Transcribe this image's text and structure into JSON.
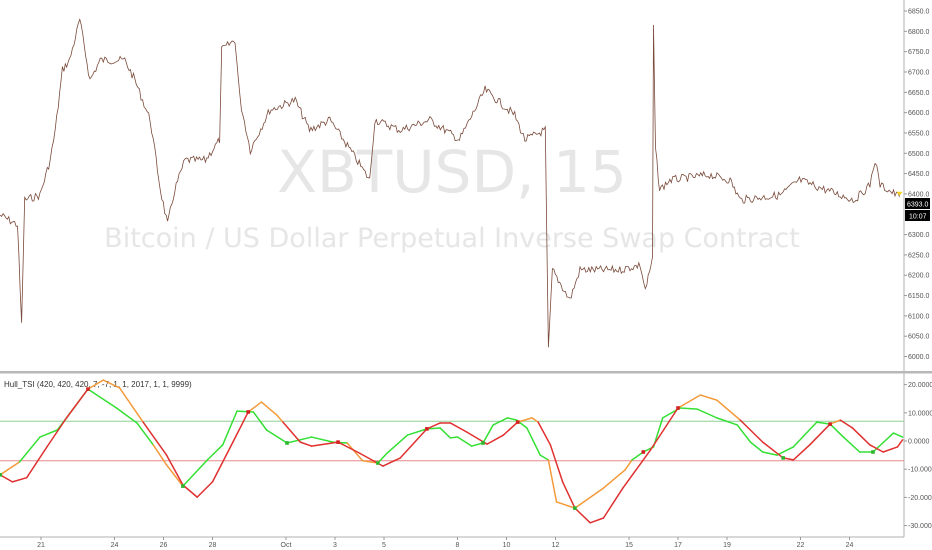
{
  "symbol": {
    "watermark_ticker": "XBTUSD, 15",
    "watermark_description": "Bitcoin / US Dollar Perpetual Inverse Swap Contract"
  },
  "price_axis": {
    "ticks": [
      "6850.0",
      "6800.0",
      "6750.0",
      "6700.0",
      "6650.0",
      "6600.0",
      "6550.0",
      "6500.0",
      "6450.0",
      "6400.0",
      "6300.0",
      "6250.0",
      "6200.0",
      "6150.0",
      "6100.0",
      "6050.0",
      "6000.0"
    ],
    "last_price": "6393.0",
    "countdown": "10:07",
    "last_price_color": "#000000"
  },
  "indicator": {
    "label": "Hull_TSI (420, 420, 420, 7, -7, 1, 1, 2017, 1, 1, 9999)",
    "ticks": [
      "20.0000",
      "10.0000",
      "0.0000",
      "-10.0000",
      "-20.0000",
      "-30.0000"
    ]
  },
  "time_axis": {
    "ticks": [
      "21",
      "24",
      "26",
      "28",
      "Oct",
      "3",
      "5",
      "8",
      "10",
      "12",
      "15",
      "17",
      "19",
      "22",
      "24"
    ]
  },
  "colors": {
    "up_line": "#33e033",
    "down_line": "#e03030",
    "alt_line": "#f39a3a",
    "upper_level": "#8fd08f",
    "lower_level": "#e88888",
    "price_line": "#7a4a3a"
  },
  "chart_data": [
    {
      "type": "line",
      "title": "",
      "ylim": [
        5975,
        6870
      ],
      "series": [
        {
          "points": [
            [
              "09-19 08:00",
              6348
            ],
            [
              "09-20 01:00",
              6324
            ],
            [
              "09-20 05:00",
              6078
            ],
            [
              "09-20 08:00",
              6385
            ],
            [
              "09-20 23:00",
              6397
            ],
            [
              "09-21 09:00",
              6483
            ],
            [
              "09-21 14:00",
              6557
            ],
            [
              "09-21 21:00",
              6705
            ],
            [
              "09-22 04:00",
              6729
            ],
            [
              "09-22 14:00",
              6828
            ],
            [
              "09-23 00:00",
              6680
            ],
            [
              "09-23 10:00",
              6729
            ],
            [
              "09-24 10:00",
              6729
            ],
            [
              "09-24 20:00",
              6680
            ],
            [
              "09-25 11:00",
              6582
            ],
            [
              "09-25 21:00",
              6410
            ],
            [
              "09-26 04:00",
              6324
            ],
            [
              "09-26 11:00",
              6410
            ],
            [
              "09-26 21:00",
              6483
            ],
            [
              "09-27 17:00",
              6483
            ],
            [
              "09-28 07:00",
              6533
            ],
            [
              "09-28 09:00",
              6754
            ],
            [
              "09-28 22:00",
              6779
            ],
            [
              "09-29 03:00",
              6631
            ],
            [
              "09-29 13:00",
              6508
            ],
            [
              "09-30 08:00",
              6606
            ],
            [
              "10-01 09:00",
              6631
            ],
            [
              "10-01 23:00",
              6557
            ],
            [
              "10-02 19:00",
              6582
            ],
            [
              "10-03 15:00",
              6508
            ],
            [
              "10-04 10:00",
              6434
            ],
            [
              "10-04 15:00",
              6582
            ],
            [
              "10-05 16:00",
              6557
            ],
            [
              "10-06 21:00",
              6582
            ],
            [
              "10-08 02:00",
              6533
            ],
            [
              "10-09 03:00",
              6656
            ],
            [
              "10-10 08:00",
              6594
            ],
            [
              "10-10 18:00",
              6533
            ],
            [
              "10-11 14:00",
              6557
            ],
            [
              "10-11 17:00",
              6016
            ],
            [
              "10-11 21:00",
              6213
            ],
            [
              "10-12 14:00",
              6139
            ],
            [
              "10-13 00:00",
              6213
            ],
            [
              "10-14 15:00",
              6213
            ],
            [
              "10-15 11:00",
              6225
            ],
            [
              "10-15 16:00",
              6164
            ],
            [
              "10-15 23:00",
              6237
            ],
            [
              "10-16 00:00",
              6816
            ],
            [
              "10-16 02:00",
              6508
            ],
            [
              "10-16 06:00",
              6410
            ],
            [
              "10-16 16:00",
              6434
            ],
            [
              "10-18 07:00",
              6447
            ],
            [
              "10-19 03:00",
              6434
            ],
            [
              "10-19 13:00",
              6385
            ],
            [
              "10-21 04:00",
              6397
            ],
            [
              "10-21 23:00",
              6434
            ],
            [
              "10-23 15:00",
              6397
            ],
            [
              "10-24 05:00",
              6385
            ],
            [
              "10-24 20:00",
              6422
            ],
            [
              "10-25 01:00",
              6483
            ],
            [
              "10-25 06:00",
              6422
            ],
            [
              "10-26 01:00",
              6393
            ]
          ]
        }
      ]
    },
    {
      "type": "line",
      "title": "Hull_TSI (420, 420, 420, 7, -7, 1, 1, 2017, 1, 1, 9999)",
      "ylim": [
        -33,
        24
      ],
      "levels": [
        7,
        -7
      ],
      "series": [
        {
          "points": [
            [
              "09-19 08:00",
              -12,
              "g"
            ],
            [
              "09-20 03:00",
              -7.4,
              "o"
            ],
            [
              "09-20 23:00",
              1.4,
              "g"
            ],
            [
              "09-21 16:00",
              3.9,
              "g"
            ],
            [
              "09-22 01:00",
              8.2,
              "g"
            ],
            [
              "09-22 22:00",
              18.4,
              "g"
            ],
            [
              "09-24 02:00",
              11.7,
              "g"
            ],
            [
              "09-24 22:00",
              6.4,
              "g"
            ],
            [
              "09-25 14:00",
              -1.4,
              "g"
            ],
            [
              "09-26 03:00",
              -8.5,
              "o"
            ],
            [
              "09-26 19:00",
              -16,
              "o"
            ],
            [
              "09-27 19:00",
              -6.7,
              "g"
            ],
            [
              "09-28 10:00",
              -1.4,
              "g"
            ],
            [
              "09-29 00:00",
              10.6,
              "g"
            ],
            [
              "09-29 16:00",
              10.3,
              "g"
            ],
            [
              "09-30 05:00",
              3.9,
              "g"
            ],
            [
              "10-01 01:00",
              -0.7,
              "g"
            ],
            [
              "10-02 01:00",
              1.4,
              "g"
            ],
            [
              "10-02 22:00",
              -0.4,
              "g"
            ],
            [
              "10-03 12:00",
              -0.7,
              "g"
            ],
            [
              "10-04 03:00",
              -7,
              "o"
            ],
            [
              "10-04 18:00",
              -7.8,
              "o"
            ],
            [
              "10-05 03:00",
              -4.3,
              "g"
            ],
            [
              "10-05 23:00",
              2.1,
              "g"
            ],
            [
              "10-06 18:00",
              4.3,
              "g"
            ],
            [
              "10-07 07:00",
              4.6,
              "g"
            ],
            [
              "10-07 17:00",
              1.1,
              "g"
            ],
            [
              "10-08 00:00",
              1.4,
              "g"
            ],
            [
              "10-08 14:00",
              -1.8,
              "g"
            ],
            [
              "10-09 01:00",
              -0.7,
              "g"
            ],
            [
              "10-09 11:00",
              5.7,
              "g"
            ],
            [
              "10-10 01:00",
              8.2,
              "g"
            ],
            [
              "10-10 10:00",
              7.4,
              "g"
            ],
            [
              "10-10 20:00",
              4.6,
              "g"
            ],
            [
              "10-11 09:00",
              -5,
              "g"
            ],
            [
              "10-11 17:00",
              -6.7,
              "g"
            ],
            [
              "10-12 01:00",
              -21.6,
              "o"
            ],
            [
              "10-12 19:00",
              -23.8,
              "o"
            ],
            [
              "10-13 23:00",
              -16.7,
              "o"
            ],
            [
              "10-14 20:00",
              -10.3,
              "o"
            ],
            [
              "10-15 03:00",
              -6.7,
              "o"
            ],
            [
              "10-15 14:00",
              -3.9,
              "g"
            ],
            [
              "10-16 00:00",
              -2.1,
              "g"
            ],
            [
              "10-16 09:00",
              8.2,
              "g"
            ],
            [
              "10-17 02:00",
              11.7,
              "g"
            ],
            [
              "10-17 19:00",
              11.3,
              "g"
            ],
            [
              "10-18 14:00",
              8.2,
              "g"
            ],
            [
              "10-19 10:00",
              5.7,
              "g"
            ],
            [
              "10-19 23:00",
              -0.4,
              "g"
            ],
            [
              "10-20 11:00",
              -3.9,
              "g"
            ],
            [
              "10-21 01:00",
              -5,
              "g"
            ],
            [
              "10-21 17:00",
              -2.1,
              "g"
            ],
            [
              "10-22 16:00",
              6.7,
              "g"
            ],
            [
              "10-23 05:00",
              6,
              "g"
            ],
            [
              "10-23 18:00",
              1.4,
              "g"
            ],
            [
              "10-24 10:00",
              -3.9,
              "g"
            ],
            [
              "10-24 23:00",
              -3.9,
              "g"
            ],
            [
              "10-25 19:00",
              2.8,
              "g"
            ],
            [
              "10-26 04:00",
              1.4,
              "g"
            ]
          ]
        },
        {
          "points": [
            [
              "09-19 08:00",
              -12,
              "r"
            ],
            [
              "09-19 20:00",
              -14.5,
              "r"
            ],
            [
              "09-20 10:00",
              -13,
              "r"
            ],
            [
              "09-21 06:00",
              -2,
              "r"
            ],
            [
              "09-22 01:00",
              8.2,
              "r"
            ],
            [
              "09-22 22:00",
              18.4,
              "r"
            ],
            [
              "09-23 13:00",
              21.6,
              "o"
            ],
            [
              "09-24 05:00",
              18.8,
              "o"
            ],
            [
              "09-25 04:00",
              6.7,
              "o"
            ],
            [
              "09-26 03:00",
              -5,
              "r"
            ],
            [
              "09-26 19:00",
              -15.6,
              "r"
            ],
            [
              "09-27 09:00",
              -19.9,
              "r"
            ],
            [
              "09-28 00:00",
              -14.5,
              "r"
            ],
            [
              "09-28 20:00",
              -0.4,
              "r"
            ],
            [
              "09-29 11:00",
              10.3,
              "r"
            ],
            [
              "09-30 00:00",
              13.8,
              "o"
            ],
            [
              "09-30 15:00",
              9.2,
              "o"
            ],
            [
              "09-30 21:00",
              6.7,
              "o"
            ],
            [
              "10-01 14:00",
              -0.4,
              "r"
            ],
            [
              "10-02 01:00",
              -1.8,
              "r"
            ],
            [
              "10-03 03:00",
              -0.4,
              "r"
            ],
            [
              "10-04 00:00",
              -4.3,
              "r"
            ],
            [
              "10-04 23:00",
              -8.9,
              "r"
            ],
            [
              "10-05 16:00",
              -6,
              "r"
            ],
            [
              "10-06 18:00",
              4.3,
              "r"
            ],
            [
              "10-07 07:00",
              6.4,
              "r"
            ],
            [
              "10-07 17:00",
              6.4,
              "r"
            ],
            [
              "10-08 09:00",
              3.2,
              "r"
            ],
            [
              "10-09 05:00",
              -1.1,
              "r"
            ],
            [
              "10-09 21:00",
              2.1,
              "r"
            ],
            [
              "10-10 11:00",
              6.7,
              "r"
            ],
            [
              "10-11 01:00",
              8.2,
              "o"
            ],
            [
              "10-11 07:00",
              6.7,
              "o"
            ],
            [
              "10-11 19:00",
              -1.4,
              "r"
            ],
            [
              "10-12 07:00",
              -14.5,
              "r"
            ],
            [
              "10-12 19:00",
              -23.8,
              "r"
            ],
            [
              "10-13 10:00",
              -29,
              "r"
            ],
            [
              "10-13 23:00",
              -27.3,
              "r"
            ],
            [
              "10-14 18:00",
              -16.7,
              "r"
            ],
            [
              "10-15 21:00",
              -3.2,
              "r"
            ],
            [
              "10-17 00:00",
              11.7,
              "r"
            ],
            [
              "10-17 22:00",
              16.3,
              "o"
            ],
            [
              "10-18 14:00",
              14.5,
              "o"
            ],
            [
              "10-19 13:00",
              7.4,
              "o"
            ],
            [
              "10-20 11:00",
              -0.4,
              "r"
            ],
            [
              "10-21 07:00",
              -6,
              "r"
            ],
            [
              "10-21 17:00",
              -6.7,
              "r"
            ],
            [
              "10-22 09:00",
              -1.4,
              "r"
            ],
            [
              "10-23 05:00",
              6,
              "r"
            ],
            [
              "10-23 15:00",
              7.4,
              "o"
            ],
            [
              "10-24 03:00",
              4.6,
              "r"
            ],
            [
              "10-24 20:00",
              -1.4,
              "r"
            ],
            [
              "10-25 09:00",
              -3.9,
              "r"
            ],
            [
              "10-25 23:00",
              -2.1,
              "r"
            ],
            [
              "10-26 04:00",
              0.4,
              "r"
            ]
          ]
        }
      ],
      "cross_markers": [
        [
          "09-19 08:00",
          -12,
          "g"
        ],
        [
          "09-22 22:00",
          18.4,
          "r"
        ],
        [
          "09-26 19:00",
          -16,
          "g"
        ],
        [
          "09-29 11:00",
          10.3,
          "r"
        ],
        [
          "10-01 01:00",
          -0.7,
          "g"
        ],
        [
          "10-03 03:00",
          -0.4,
          "r"
        ],
        [
          "10-04 18:00",
          -7.8,
          "g"
        ],
        [
          "10-06 18:00",
          4.3,
          "r"
        ],
        [
          "10-09 01:00",
          -0.7,
          "g"
        ],
        [
          "10-10 11:00",
          6.7,
          "r"
        ],
        [
          "10-12 19:00",
          -23.8,
          "g"
        ],
        [
          "10-15 14:00",
          -3.9,
          "r"
        ],
        [
          "10-17 00:00",
          11.7,
          "r"
        ],
        [
          "10-21 07:00",
          -6,
          "g"
        ],
        [
          "10-23 05:00",
          6,
          "r"
        ],
        [
          "10-24 23:00",
          -3.9,
          "g"
        ]
      ]
    }
  ]
}
